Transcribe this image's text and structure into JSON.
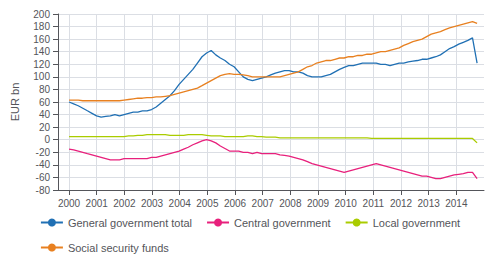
{
  "chart_data": {
    "type": "line",
    "ylabel": "EUR bn",
    "xlim": [
      1999.6,
      2015.0
    ],
    "xticks": [
      2000,
      2001,
      2002,
      2003,
      2004,
      2005,
      2006,
      2007,
      2008,
      2009,
      2010,
      2011,
      2012,
      2013,
      2014
    ],
    "ylim": [
      -80,
      200
    ],
    "yticks": [
      -80,
      -60,
      -40,
      -20,
      0,
      20,
      40,
      60,
      80,
      100,
      120,
      140,
      160,
      180,
      200
    ],
    "grid": true,
    "legend": "bottom",
    "x": [
      2000,
      2000.1657,
      2000.3315,
      2000.4972,
      2000.6629,
      2000.8287,
      2000.9944,
      2001.1601,
      2001.3258,
      2001.4916,
      2001.6573,
      2001.823,
      2001.9888,
      2002.1545,
      2002.3202,
      2002.486,
      2002.6517,
      2002.8174,
      2002.9831,
      2003.1489,
      2003.3146,
      2003.4803,
      2003.6461,
      2003.8118,
      2003.9775,
      2004.1433,
      2004.309,
      2004.4747,
      2004.6404,
      2004.8062,
      2004.9719,
      2005.1376,
      2005.3034,
      2005.4691,
      2005.6348,
      2005.8006,
      2005.9663,
      2006.132,
      2006.2978,
      2006.4635,
      2006.6292,
      2006.7949,
      2006.9607,
      2007.1264,
      2007.2921,
      2007.4579,
      2007.6236,
      2007.7893,
      2007.9551,
      2008.1208,
      2008.2865,
      2008.4522,
      2008.618,
      2008.7837,
      2008.9494,
      2009.1152,
      2009.2809,
      2009.4466,
      2009.6124,
      2009.7781,
      2009.9438,
      2010.1096,
      2010.2753,
      2010.441,
      2010.6067,
      2010.7725,
      2010.9382,
      2011.1039,
      2011.2697,
      2011.4354,
      2011.6011,
      2011.7669,
      2011.9326,
      2012.0983,
      2012.264,
      2012.4298,
      2012.5955,
      2012.7612,
      2012.927,
      2013.0927,
      2013.2584,
      2013.4242,
      2013.5899,
      2013.7556,
      2013.9213,
      2014.0871,
      2014.2528,
      2014.4185,
      2014.5843,
      2014.75
    ],
    "series": [
      {
        "name": "General government total",
        "color": "#2070b4",
        "values": [
          60,
          57,
          54,
          50,
          46,
          42,
          38,
          36,
          37,
          38,
          40,
          38,
          40,
          42,
          44,
          44,
          46,
          46,
          48,
          52,
          58,
          64,
          70,
          78,
          88,
          96,
          104,
          112,
          122,
          132,
          138,
          142,
          135,
          130,
          126,
          120,
          116,
          108,
          100,
          96,
          94,
          96,
          98,
          100,
          103,
          106,
          108,
          110,
          110,
          108,
          108,
          106,
          102,
          100,
          100,
          100,
          102,
          104,
          108,
          112,
          115,
          118,
          118,
          120,
          122,
          122,
          122,
          122,
          120,
          120,
          118,
          120,
          122,
          122,
          124,
          125,
          126,
          128,
          128,
          130,
          132,
          135,
          140,
          145,
          148,
          152,
          155,
          158,
          162,
          122
        ]
      },
      {
        "name": "Central government",
        "color": "#e8207c",
        "values": [
          -15,
          -16,
          -18,
          -20,
          -22,
          -24,
          -26,
          -28,
          -30,
          -32,
          -32,
          -32,
          -30,
          -30,
          -30,
          -30,
          -30,
          -30,
          -28,
          -28,
          -26,
          -24,
          -22,
          -20,
          -18,
          -15,
          -12,
          -8,
          -5,
          -2,
          0,
          -2,
          -5,
          -10,
          -14,
          -18,
          -18,
          -18,
          -20,
          -20,
          -22,
          -20,
          -22,
          -22,
          -22,
          -22,
          -24,
          -25,
          -26,
          -28,
          -30,
          -32,
          -35,
          -38,
          -40,
          -42,
          -44,
          -46,
          -48,
          -50,
          -52,
          -50,
          -48,
          -46,
          -44,
          -42,
          -40,
          -38,
          -40,
          -42,
          -44,
          -46,
          -48,
          -50,
          -52,
          -54,
          -56,
          -58,
          -58,
          -60,
          -62,
          -62,
          -60,
          -58,
          -56,
          -55,
          -54,
          -52,
          -52,
          -62
        ]
      },
      {
        "name": "Local government",
        "color": "#aacc00",
        "values": [
          5,
          5,
          5,
          5,
          5,
          5,
          5,
          5,
          5,
          5,
          5,
          5,
          5,
          6,
          6,
          7,
          7,
          8,
          8,
          8,
          8,
          8,
          7,
          7,
          7,
          7,
          8,
          8,
          8,
          8,
          7,
          6,
          6,
          6,
          5,
          5,
          5,
          5,
          5,
          6,
          6,
          5,
          5,
          4,
          4,
          4,
          3,
          3,
          3,
          3,
          3,
          3,
          3,
          3,
          3,
          3,
          3,
          3,
          3,
          3,
          3,
          3,
          3,
          3,
          3,
          3,
          2,
          2,
          2,
          2,
          2,
          2,
          2,
          2,
          2,
          2,
          2,
          2,
          2,
          2,
          2,
          2,
          2,
          2,
          2,
          2,
          2,
          2,
          2,
          -5
        ]
      },
      {
        "name": "Social security funds",
        "color": "#e88020",
        "values": [
          63,
          63,
          63,
          62,
          62,
          62,
          62,
          62,
          62,
          62,
          62,
          62,
          63,
          64,
          65,
          66,
          66,
          67,
          67,
          68,
          68,
          69,
          70,
          72,
          74,
          76,
          78,
          80,
          82,
          86,
          90,
          94,
          98,
          102,
          104,
          105,
          104,
          104,
          103,
          102,
          100,
          100,
          100,
          100,
          100,
          100,
          100,
          102,
          104,
          106,
          108,
          112,
          116,
          118,
          122,
          124,
          126,
          126,
          128,
          130,
          130,
          132,
          132,
          134,
          134,
          136,
          136,
          138,
          140,
          140,
          142,
          144,
          146,
          150,
          153,
          156,
          158,
          160,
          164,
          168,
          170,
          172,
          175,
          178,
          180,
          182,
          184,
          186,
          188,
          185
        ]
      }
    ]
  }
}
